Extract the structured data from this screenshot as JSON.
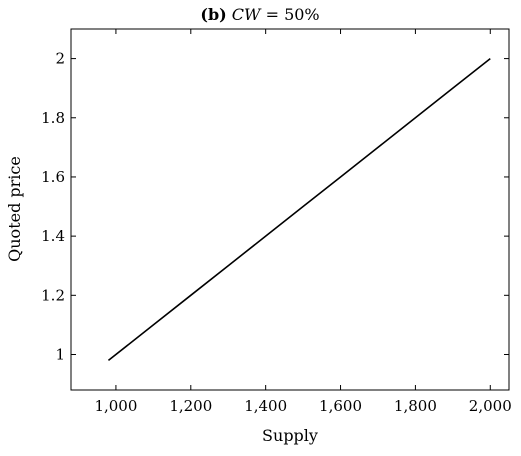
{
  "chart_data": {
    "type": "line",
    "title_prefix": "(b)",
    "title_var": "CW",
    "title_rest": " = 50%",
    "xlabel": "Supply",
    "ylabel": "Quoted price",
    "xlim": [
      880,
      2050
    ],
    "ylim": [
      0.88,
      2.1
    ],
    "xticks": [
      1000,
      1200,
      1400,
      1600,
      1800,
      2000
    ],
    "xtick_labels": [
      "1,000",
      "1,200",
      "1,400",
      "1,600",
      "1,800",
      "2,000"
    ],
    "yticks": [
      1,
      1.2,
      1.4,
      1.6,
      1.8,
      2
    ],
    "ytick_labels": [
      "1",
      "1.2",
      "1.4",
      "1.6",
      "1.8",
      "2"
    ],
    "series": [
      {
        "x": [
          980,
          1100,
          1200,
          1300,
          1400,
          1500,
          1600,
          1700,
          1800,
          1900,
          2000
        ],
        "y": [
          0.98,
          1.1,
          1.2,
          1.3,
          1.4,
          1.5,
          1.6,
          1.7,
          1.8,
          1.9,
          2.0
        ],
        "color": "#000000"
      }
    ],
    "grid": false,
    "line_color": "#000000"
  }
}
